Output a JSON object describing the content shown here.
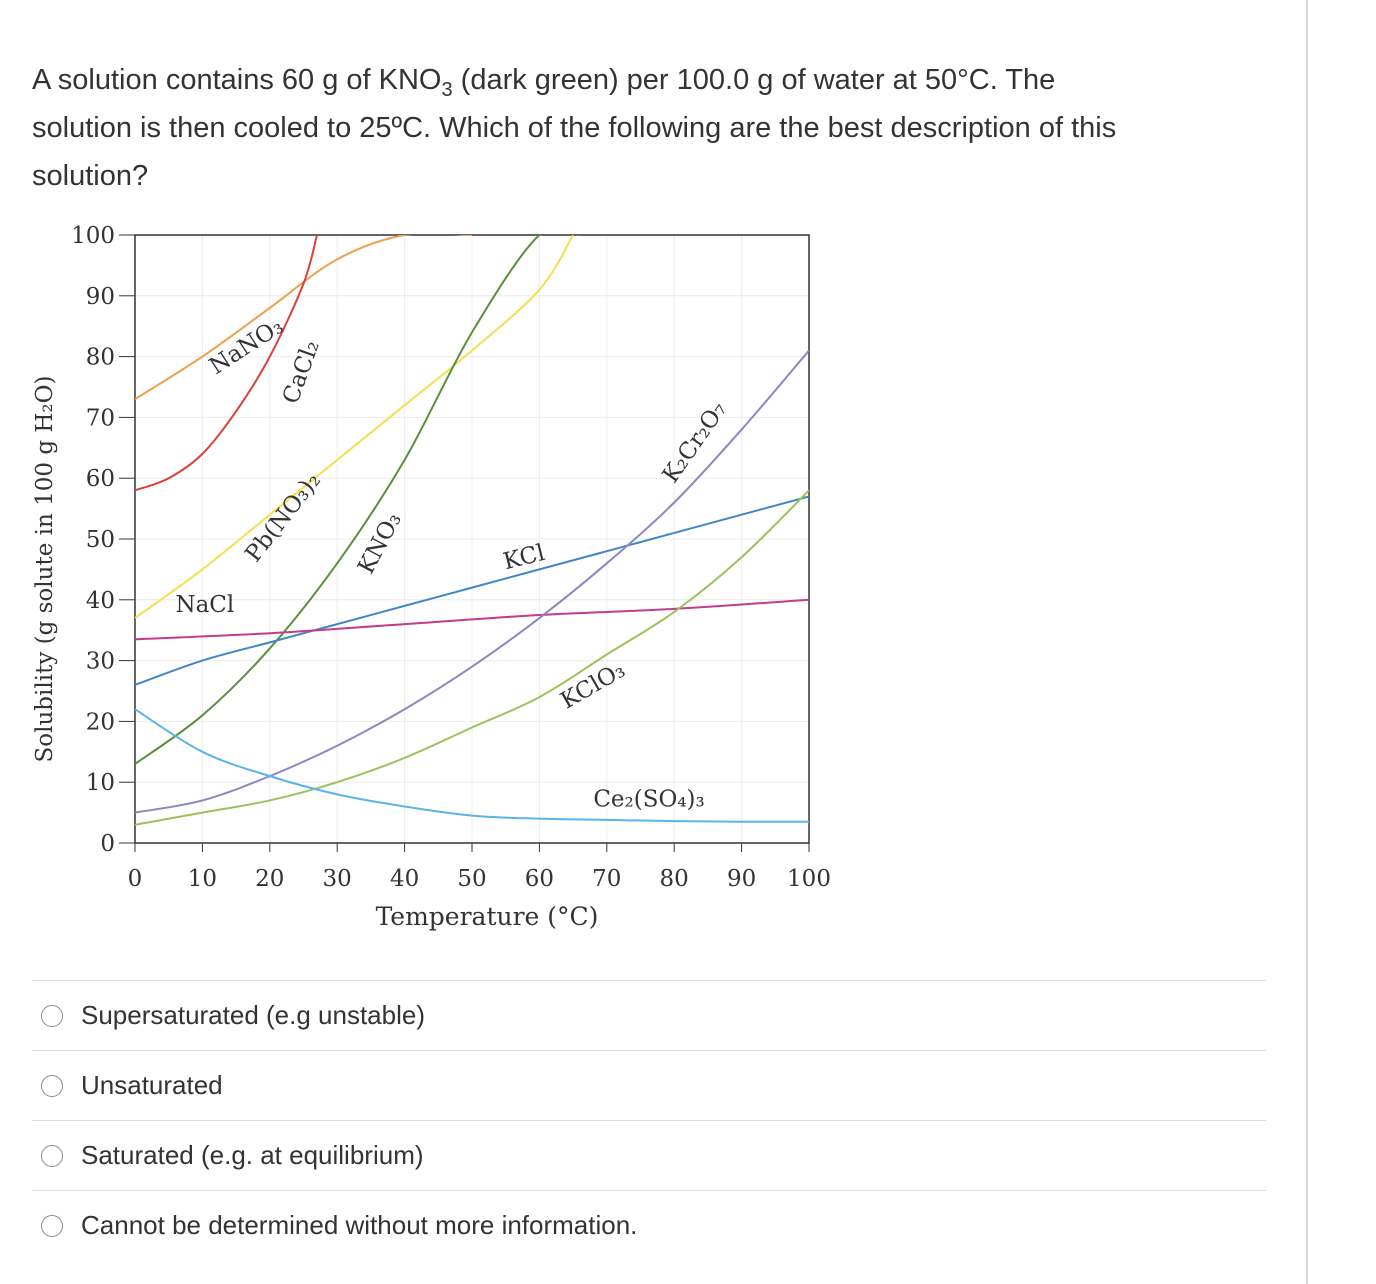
{
  "question": {
    "line1_a": "A solution contains 60 g of  KNO",
    "line1_sub": "3",
    "line1_b": " (dark green) per 100.0 g of water at 50°C. The",
    "line2": "solution is then cooled to 25ºC. Which of the following are the best description of this",
    "line3": "solution?"
  },
  "chart_data": {
    "type": "line",
    "xlabel": "Temperature (°C)",
    "ylabel": "Solubility (g solute in 100 g H₂O)",
    "xlim": [
      0,
      100
    ],
    "ylim": [
      0,
      100
    ],
    "xticks": [
      "0",
      "10",
      "20",
      "30",
      "40",
      "50",
      "60",
      "70",
      "80",
      "90",
      "100"
    ],
    "yticks": [
      "0",
      "10",
      "20",
      "30",
      "40",
      "50",
      "60",
      "70",
      "80",
      "90",
      "100"
    ],
    "grid": true,
    "legend": "none",
    "series": [
      {
        "name": "NaNO₃",
        "color": "#f0a04b",
        "x": [
          0,
          10,
          20,
          30,
          40,
          50
        ],
        "y": [
          73,
          80,
          88,
          96,
          100,
          100
        ]
      },
      {
        "name": "CaCl₂",
        "color": "#d9423a",
        "x": [
          0,
          5,
          10,
          15,
          20,
          25,
          27
        ],
        "y": [
          58,
          60,
          64,
          71,
          80,
          92,
          100
        ]
      },
      {
        "name": "Pb(NO₃)₂",
        "color": "#f5df4d",
        "x": [
          0,
          10,
          20,
          30,
          40,
          50,
          60,
          65
        ],
        "y": [
          37,
          45,
          54,
          63,
          72,
          81,
          91,
          100
        ]
      },
      {
        "name": "KNO₃",
        "color": "#5a8f3c",
        "x": [
          0,
          10,
          20,
          30,
          40,
          50,
          60,
          66
        ],
        "y": [
          13,
          21,
          32,
          46,
          63,
          84,
          100,
          100
        ]
      },
      {
        "name": "KCl",
        "color": "#3f87c9",
        "x": [
          0,
          10,
          20,
          30,
          40,
          50,
          60,
          70,
          80,
          90,
          100
        ],
        "y": [
          26,
          30,
          33,
          36,
          39,
          42,
          45,
          48,
          51,
          54,
          57
        ]
      },
      {
        "name": "NaCl",
        "color": "#c23d8a",
        "x": [
          0,
          20,
          40,
          60,
          80,
          100
        ],
        "y": [
          33.5,
          34.5,
          36,
          37.5,
          38.5,
          40
        ]
      },
      {
        "name": "K₂Cr₂O₇",
        "color": "#8b86c4",
        "x": [
          0,
          10,
          20,
          30,
          40,
          50,
          60,
          70,
          80,
          90,
          100
        ],
        "y": [
          5,
          7,
          11,
          16,
          22,
          29,
          37,
          46,
          56,
          68,
          81
        ]
      },
      {
        "name": "KClO₃",
        "color": "#9bc25a",
        "x": [
          0,
          10,
          20,
          30,
          40,
          50,
          60,
          70,
          80,
          90,
          100
        ],
        "y": [
          3,
          5,
          7,
          10,
          14,
          19,
          24,
          31,
          38,
          47,
          58
        ]
      },
      {
        "name": "Ce₂(SO₄)₃",
        "color": "#5ab4ea",
        "x": [
          0,
          10,
          20,
          30,
          40,
          50,
          60,
          70,
          80,
          90,
          100
        ],
        "y": [
          22,
          15,
          11,
          8,
          6,
          4.5,
          4,
          3.8,
          3.6,
          3.5,
          3.5
        ]
      }
    ]
  },
  "options": [
    {
      "label": "Supersaturated (e.g unstable)"
    },
    {
      "label": "Unsaturated"
    },
    {
      "label": "Saturated (e.g. at equilibrium)"
    },
    {
      "label": "Cannot be determined without more information."
    }
  ]
}
